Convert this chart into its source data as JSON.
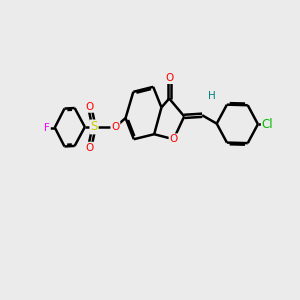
{
  "bg_color": "#ebebeb",
  "line_color": "#000000",
  "bond_width": 1.8,
  "atom_colors": {
    "O": "#ff0000",
    "F": "#ff00ff",
    "Cl": "#00bb00",
    "S": "#cccc00",
    "H": "#008080",
    "C": "#000000"
  },
  "font_size": 7.5,
  "title": ""
}
